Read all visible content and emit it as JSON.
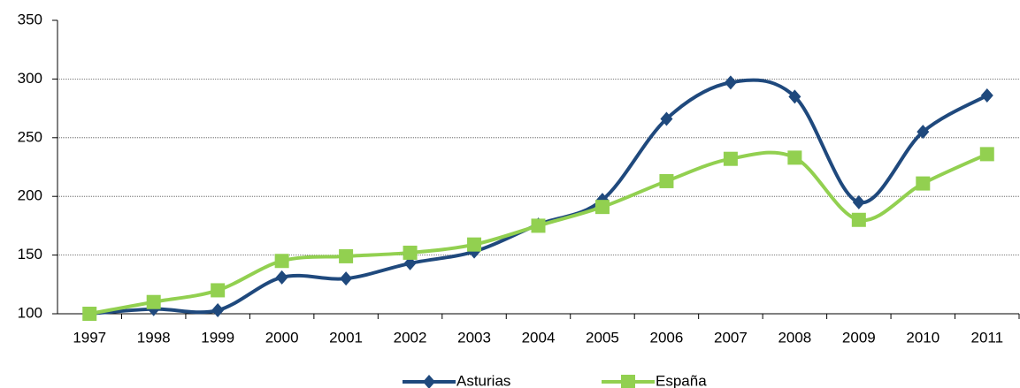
{
  "chart_data": {
    "type": "line",
    "categories": [
      "1997",
      "1998",
      "1999",
      "2000",
      "2001",
      "2002",
      "2003",
      "2004",
      "2005",
      "2006",
      "2007",
      "2008",
      "2009",
      "2010",
      "2011"
    ],
    "series": [
      {
        "name": "Asturias",
        "color": "#1f497d",
        "marker": "diamond",
        "values": [
          100,
          104,
          103,
          131,
          130,
          143,
          153,
          176,
          197,
          266,
          297,
          285,
          195,
          255,
          286
        ]
      },
      {
        "name": "España",
        "color": "#92d050",
        "marker": "square",
        "values": [
          100,
          110,
          120,
          145,
          149,
          152,
          159,
          175,
          191,
          213,
          232,
          233,
          180,
          211,
          236
        ]
      }
    ],
    "ylim": [
      100,
      350
    ],
    "yticks": [
      100,
      150,
      200,
      250,
      300,
      350
    ],
    "grid": true,
    "smooth": true,
    "legend": "bottom"
  }
}
